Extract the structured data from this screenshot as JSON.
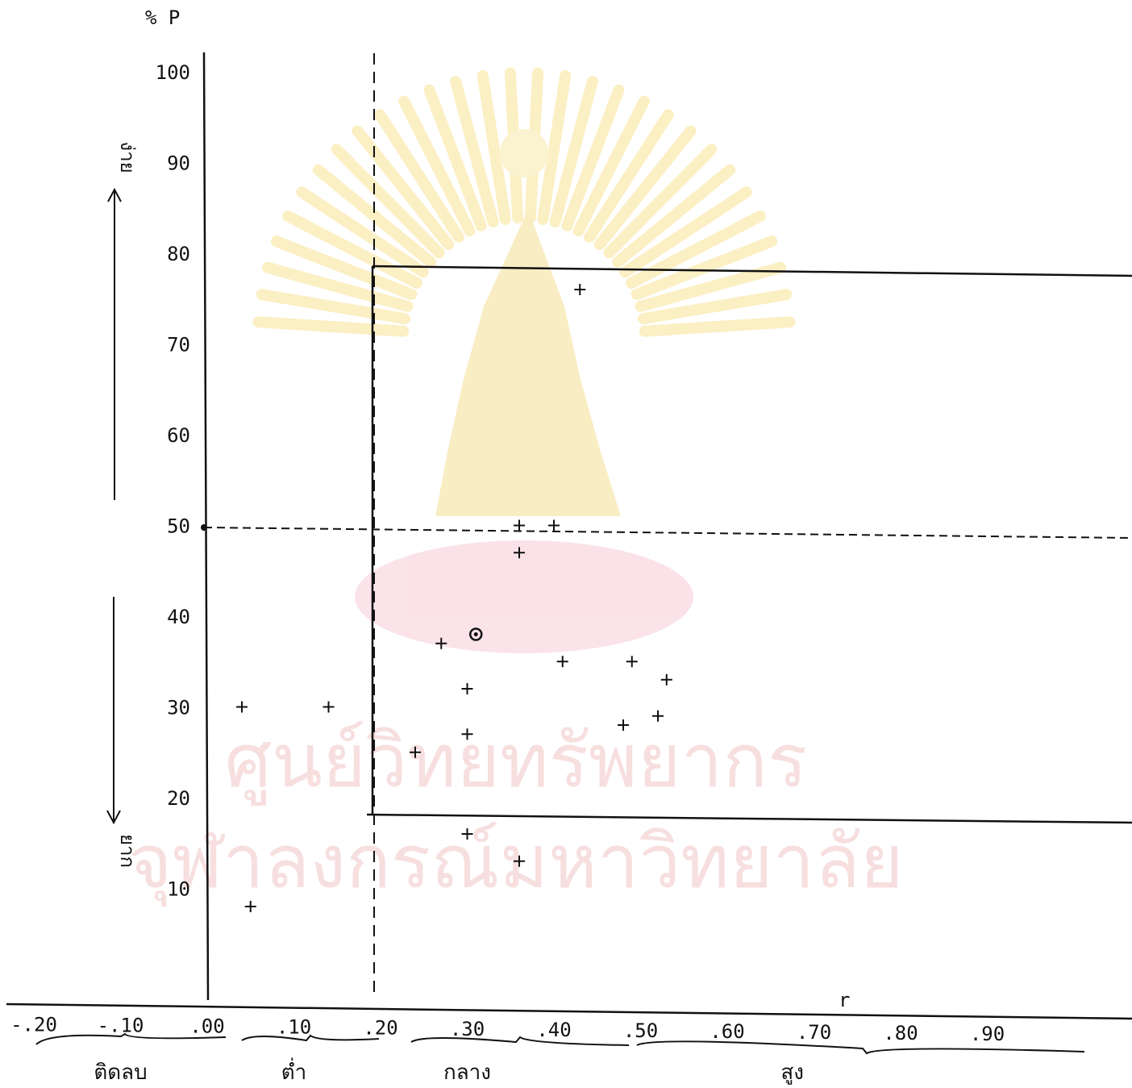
{
  "chart_data": {
    "type": "scatter",
    "ylabel": "% P",
    "xlabel": "r",
    "xlim": [
      -0.2,
      0.95
    ],
    "ylim": [
      0,
      105
    ],
    "y_ticks": [
      {
        "value": 100,
        "label": "100"
      },
      {
        "value": 90,
        "label": "90"
      },
      {
        "value": 80,
        "label": "80"
      },
      {
        "value": 70,
        "label": "70"
      },
      {
        "value": 60,
        "label": "60"
      },
      {
        "value": 50,
        "label": "50"
      },
      {
        "value": 40,
        "label": "40"
      },
      {
        "value": 30,
        "label": "30"
      },
      {
        "value": 20,
        "label": "20"
      },
      {
        "value": 10,
        "label": "10"
      }
    ],
    "x_ticks": [
      {
        "value": -0.2,
        "label": "-.20"
      },
      {
        "value": -0.1,
        "label": "-.10"
      },
      {
        "value": 0.0,
        "label": ".00"
      },
      {
        "value": 0.1,
        "label": ".10"
      },
      {
        "value": 0.2,
        "label": ".20"
      },
      {
        "value": 0.3,
        "label": ".30"
      },
      {
        "value": 0.4,
        "label": ".40"
      },
      {
        "value": 0.5,
        "label": ".50"
      },
      {
        "value": 0.6,
        "label": ".60"
      },
      {
        "value": 0.7,
        "label": ".70"
      },
      {
        "value": 0.8,
        "label": ".80"
      },
      {
        "value": 0.9,
        "label": ".90"
      }
    ],
    "points": [
      {
        "x": 0.04,
        "y": 30
      },
      {
        "x": 0.05,
        "y": 8
      },
      {
        "x": 0.14,
        "y": 30
      },
      {
        "x": 0.24,
        "y": 25
      },
      {
        "x": 0.27,
        "y": 37
      },
      {
        "x": 0.3,
        "y": 32
      },
      {
        "x": 0.3,
        "y": 27
      },
      {
        "x": 0.3,
        "y": 16
      },
      {
        "x": 0.36,
        "y": 13
      },
      {
        "x": 0.36,
        "y": 50
      },
      {
        "x": 0.36,
        "y": 47
      },
      {
        "x": 0.4,
        "y": 50
      },
      {
        "x": 0.41,
        "y": 35
      },
      {
        "x": 0.43,
        "y": 76
      },
      {
        "x": 0.48,
        "y": 28
      },
      {
        "x": 0.49,
        "y": 35
      },
      {
        "x": 0.52,
        "y": 29
      },
      {
        "x": 0.53,
        "y": 33
      }
    ],
    "circled_point": {
      "x": 0.31,
      "y": 38
    },
    "reference_lines": {
      "difficulty_upper": 77,
      "difficulty_mean": 48,
      "difficulty_lower": 20,
      "discrimination_min": 0.19
    },
    "y_regions": [
      {
        "label": "ง่าย",
        "direction": "up"
      },
      {
        "label": "ยาก",
        "direction": "down"
      }
    ],
    "x_groups": [
      {
        "label": "ติดลบ",
        "from": -0.2,
        "to": 0.0
      },
      {
        "label": "ต่ำ",
        "from": 0.0,
        "to": 0.2
      },
      {
        "label": "กลาง",
        "from": 0.2,
        "to": 0.4
      },
      {
        "label": "สูง",
        "from": 0.4,
        "to": 0.95
      }
    ],
    "grid": false,
    "legend": "none"
  },
  "watermark": {
    "lines": [
      "ศูนย์วิทยทรัพยากร",
      "จุฬาลงกรณ์มหาวิทยาลัย"
    ]
  }
}
